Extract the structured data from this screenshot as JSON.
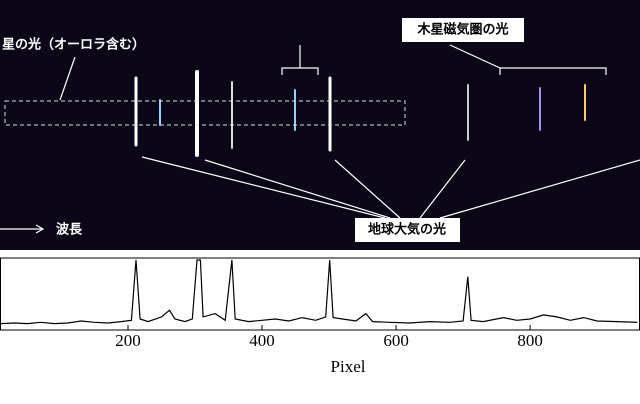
{
  "chart_data": {
    "type": "line",
    "annotations": [
      "星の光（オーロラ含む）",
      "木星磁気圏の光",
      "地球大気の光",
      "波長"
    ],
    "xlabel": "Pixel",
    "xlim": [
      9,
      964
    ],
    "ylim": [
      0,
      100
    ],
    "xticks": [
      200,
      400,
      600,
      800
    ],
    "color": "#000000",
    "x": [
      10,
      30,
      50,
      70,
      90,
      110,
      130,
      150,
      170,
      190,
      205,
      212,
      218,
      230,
      250,
      262,
      270,
      285,
      296,
      303,
      308,
      312,
      330,
      345,
      355,
      360,
      380,
      400,
      420,
      440,
      460,
      480,
      495,
      501,
      506,
      520,
      540,
      555,
      565,
      590,
      620,
      650,
      680,
      700,
      707,
      712,
      730,
      760,
      780,
      800,
      820,
      840,
      860,
      880,
      900,
      930,
      960
    ],
    "values": [
      5,
      6,
      5,
      7,
      5,
      6,
      9,
      7,
      6,
      8,
      10,
      100,
      12,
      8,
      15,
      25,
      12,
      8,
      12,
      100,
      100,
      15,
      20,
      10,
      100,
      12,
      8,
      10,
      12,
      9,
      14,
      10,
      15,
      100,
      14,
      12,
      9,
      20,
      8,
      7,
      6,
      8,
      7,
      9,
      75,
      10,
      8,
      14,
      10,
      12,
      18,
      15,
      10,
      14,
      9,
      8,
      7
    ]
  }
}
